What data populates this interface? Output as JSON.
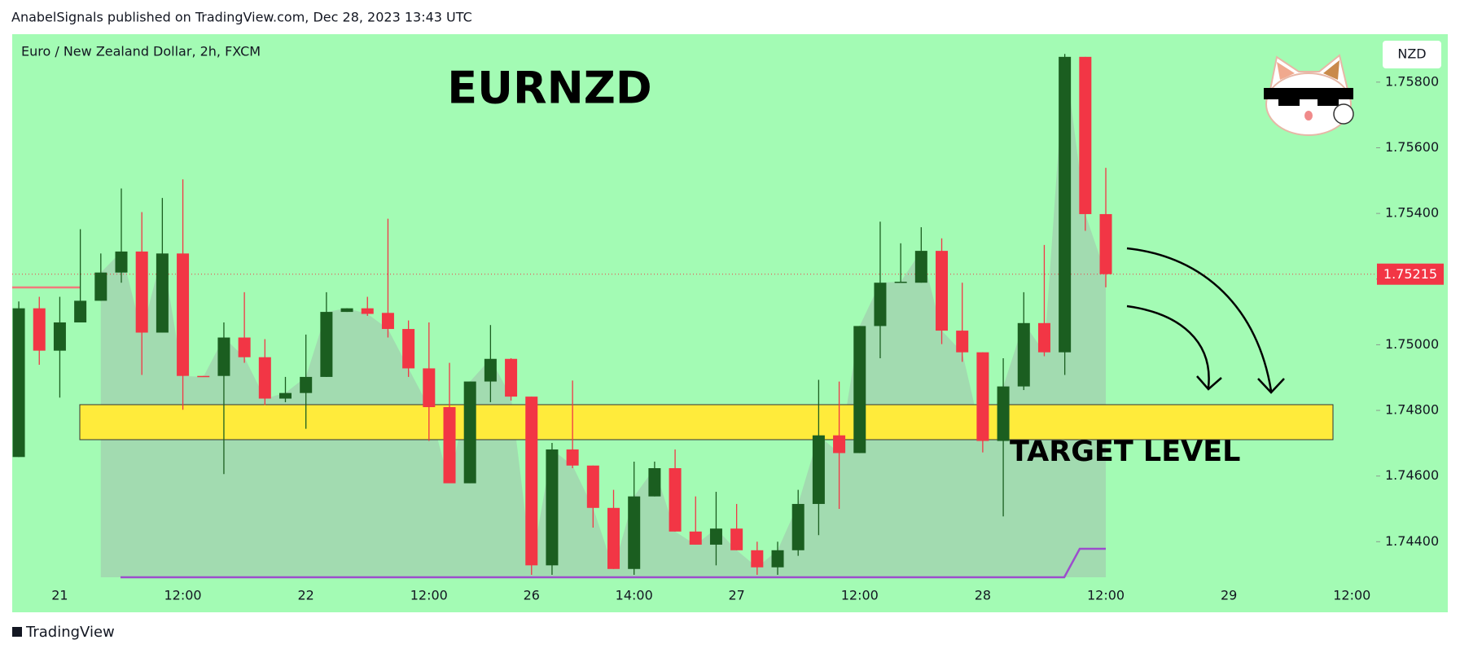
{
  "header": "AnabelSignals published on TradingView.com, Dec 28, 2023 13:43 UTC",
  "footer": "TradingView",
  "chart_data": {
    "type": "candlestick",
    "symbol": "Euro / New Zealand Dollar, 2h, FXCM",
    "title": "EURNZD",
    "annotation": "TARGET LEVEL",
    "currency": "NZD",
    "last_price": 1.75215,
    "up_color": "#1b5e20",
    "down_color": "#f23645",
    "open": [
      1.74658,
      1.75111,
      1.74982,
      1.75068,
      1.75134,
      1.7522,
      1.75284,
      1.75037,
      1.75278,
      1.74905,
      1.74905,
      1.75022,
      1.74962,
      1.74836,
      1.74853,
      1.74902,
      1.751,
      1.75111,
      1.75097,
      1.75048,
      1.74928,
      1.7481,
      1.74578,
      1.74888,
      1.74957,
      1.74842,
      1.74328,
      1.74681,
      1.74632,
      1.74503,
      1.74317,
      1.74538,
      1.74624,
      1.74431,
      1.74391,
      1.7444,
      1.74374,
      1.74322,
      1.74374,
      1.74515,
      1.74724,
      1.7467,
      1.75057,
      1.75189,
      1.75189,
      1.75286,
      1.75043,
      1.74977,
      1.74707,
      1.74873,
      1.75066,
      1.74977,
      1.75877,
      1.75398
    ],
    "high": [
      1.75132,
      1.75146,
      1.75146,
      1.75352,
      1.75278,
      1.75476,
      1.75404,
      1.75447,
      1.75504,
      1.74905,
      1.75068,
      1.7516,
      1.75017,
      1.74902,
      1.75031,
      1.7516,
      1.75111,
      1.75146,
      1.75384,
      1.75074,
      1.75068,
      1.74945,
      1.74888,
      1.7506,
      1.74959,
      1.74842,
      1.74701,
      1.74891,
      1.74632,
      1.74558,
      1.74644,
      1.74644,
      1.74681,
      1.74538,
      1.74552,
      1.74515,
      1.744,
      1.744,
      1.74558,
      1.74893,
      1.74888,
      1.75057,
      1.75375,
      1.75309,
      1.75358,
      1.75324,
      1.75189,
      1.74977,
      1.74959,
      1.7516,
      1.75304,
      1.75886,
      1.75877,
      1.75539
    ],
    "low": [
      1.74658,
      1.74939,
      1.74839,
      1.75068,
      1.75134,
      1.75189,
      1.74908,
      1.75037,
      1.74802,
      1.74902,
      1.74606,
      1.74945,
      1.74816,
      1.74825,
      1.74744,
      1.74902,
      1.751,
      1.75088,
      1.75022,
      1.74902,
      1.74707,
      1.74578,
      1.74578,
      1.74825,
      1.7483,
      1.74299,
      1.74299,
      1.74624,
      1.74443,
      1.74317,
      1.74299,
      1.74538,
      1.74431,
      1.74391,
      1.74328,
      1.74374,
      1.74299,
      1.74299,
      1.74357,
      1.7442,
      1.745,
      1.7467,
      1.74959,
      1.75189,
      1.75189,
      1.75002,
      1.74948,
      1.74672,
      1.74477,
      1.74862,
      1.74965,
      1.74908,
      1.75347,
      1.75175
    ],
    "close": [
      1.75111,
      1.74982,
      1.75068,
      1.75134,
      1.7522,
      1.75284,
      1.75037,
      1.75278,
      1.74905,
      1.74902,
      1.75022,
      1.74962,
      1.74836,
      1.74853,
      1.74902,
      1.751,
      1.75111,
      1.75094,
      1.75048,
      1.74928,
      1.7481,
      1.74578,
      1.74888,
      1.74957,
      1.74842,
      1.74328,
      1.74681,
      1.74632,
      1.74503,
      1.74317,
      1.74538,
      1.74624,
      1.74431,
      1.74391,
      1.7444,
      1.74374,
      1.74322,
      1.74374,
      1.74515,
      1.74724,
      1.7467,
      1.75057,
      1.75189,
      1.75192,
      1.75286,
      1.75043,
      1.74977,
      1.74707,
      1.74873,
      1.75066,
      1.74977,
      1.75877,
      1.75398,
      1.75215
    ],
    "xlim": [
      -0.32,
      66.18
    ],
    "xticks": [
      {
        "value": 2,
        "label": "21"
      },
      {
        "value": 8,
        "label": "12:00"
      },
      {
        "value": 14,
        "label": "22"
      },
      {
        "value": 20,
        "label": "12:00"
      },
      {
        "value": 25,
        "label": "26"
      },
      {
        "value": 30,
        "label": "14:00"
      },
      {
        "value": 35,
        "label": "27"
      },
      {
        "value": 41,
        "label": "12:00"
      },
      {
        "value": 47,
        "label": "28"
      },
      {
        "value": 53,
        "label": "12:00"
      },
      {
        "value": 59,
        "label": "29"
      },
      {
        "value": 65,
        "label": "12:00"
      }
    ],
    "ylim": [
      1.74185,
      1.75946
    ],
    "yticks": [
      {
        "value": 1.744,
        "label": "1.74400"
      },
      {
        "value": 1.746,
        "label": "1.74600"
      },
      {
        "value": 1.748,
        "label": "1.74800"
      },
      {
        "value": 1.75,
        "label": "1.75000"
      },
      {
        "value": 1.752,
        "label": "1.75200"
      },
      {
        "value": 1.754,
        "label": "1.75400"
      },
      {
        "value": 1.756,
        "label": "1.75600"
      },
      {
        "value": 1.758,
        "label": "1.75800"
      }
    ]
  }
}
